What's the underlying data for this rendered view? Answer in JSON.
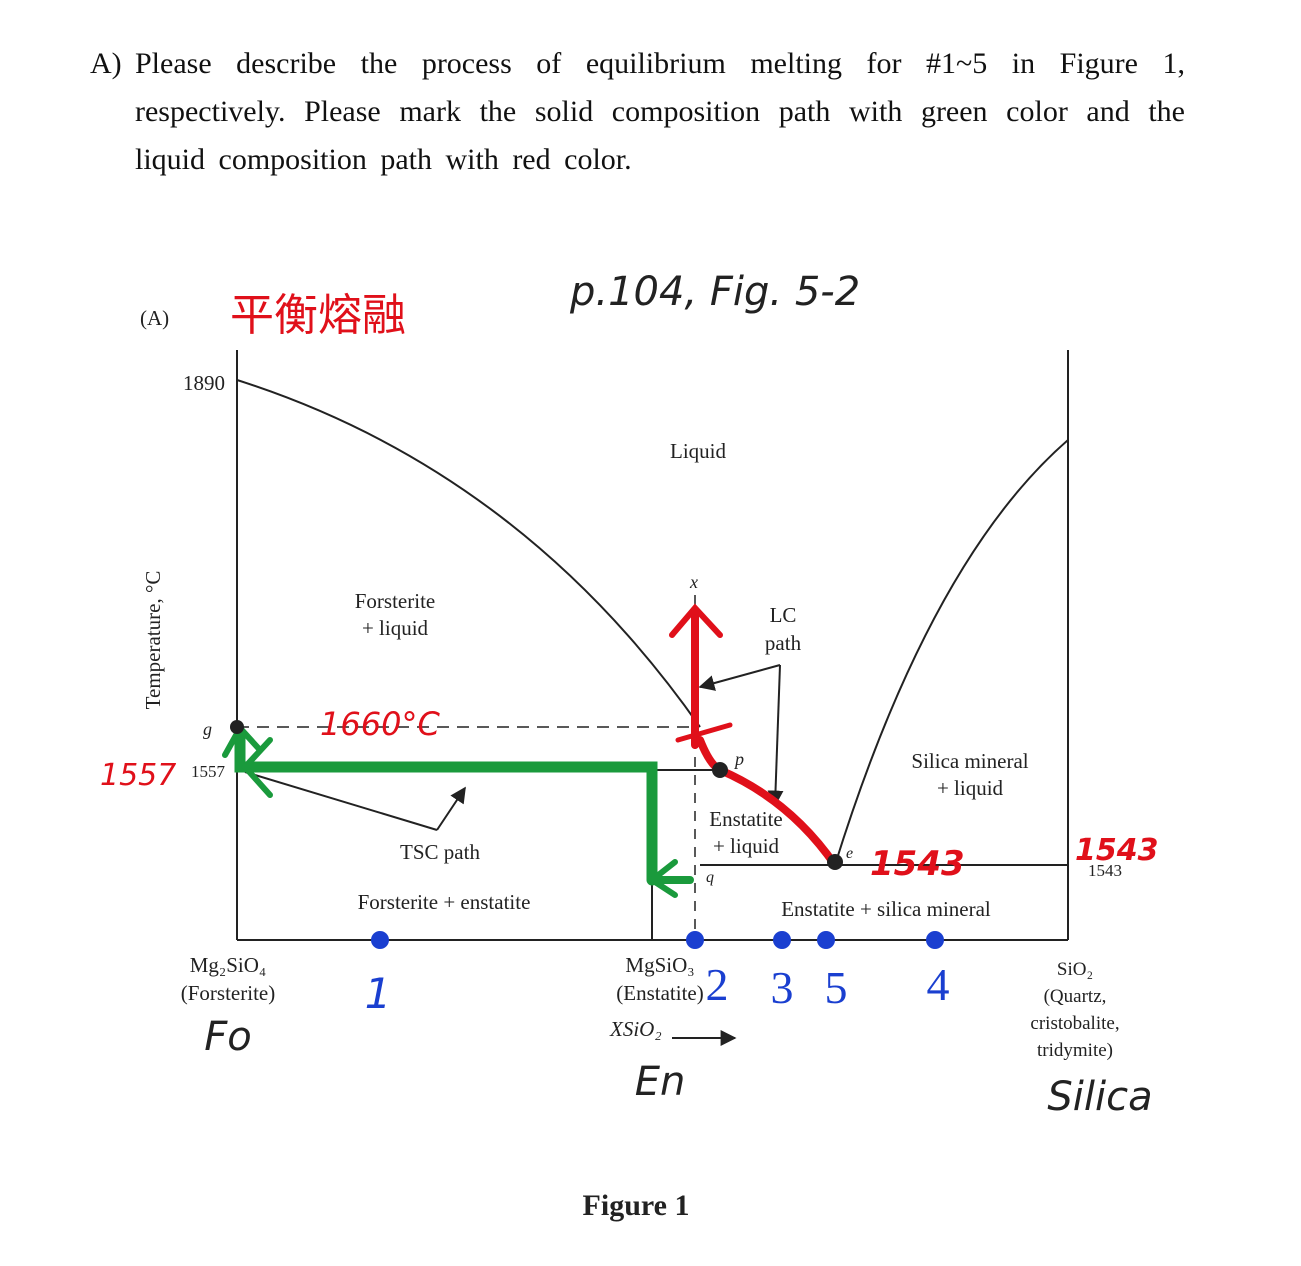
{
  "question": {
    "label": "A)",
    "text": "Please describe the process of equilibrium melting for #1~5 in Figure 1, respectively. Please mark the solid composition path with green color and the liquid composition path with red color."
  },
  "figure": {
    "panel_label": "(A)",
    "y_axis_label": "Temperature, °C",
    "temperature_labels": [
      "1890",
      "1557",
      "1543"
    ],
    "point_labels": [
      "g",
      "x",
      "p",
      "e",
      "q"
    ],
    "fields": {
      "liquid": "Liquid",
      "forsterite_liquid": [
        "Forsterite",
        "+ liquid"
      ],
      "lc_path": [
        "LC",
        "path"
      ],
      "silica_liquid": [
        "Silica mineral",
        "+ liquid"
      ],
      "enstatite_liquid": [
        "Enstatite",
        "+ liquid"
      ],
      "tsc_path": "TSC path",
      "forsterite_enstatite": "Forsterite + enstatite",
      "enstatite_silica": "Enstatite + silica mineral"
    },
    "x_labels": {
      "forsterite": [
        "Mg₂SiO₄",
        "(Forsterite)"
      ],
      "enstatite": [
        "MgSiO₃",
        "(Enstatite)"
      ],
      "axis": "XSiO₂",
      "silica": [
        "SiO₂",
        "(Quartz,",
        "cristobalite,",
        "tridymite)"
      ]
    }
  },
  "annotations": {
    "title_cn": "平衡熔融",
    "reference": "p.104, Fig. 5-2",
    "temp_1660": "1660°C",
    "temp_1557": "1557",
    "temp_1543_eutectic": "1543",
    "temp_1543_axis": "1543",
    "points": [
      "1",
      "2",
      "3",
      "5",
      "4"
    ],
    "end_members": [
      "Fo",
      "En",
      "Silica"
    ]
  },
  "caption": "Figure 1"
}
